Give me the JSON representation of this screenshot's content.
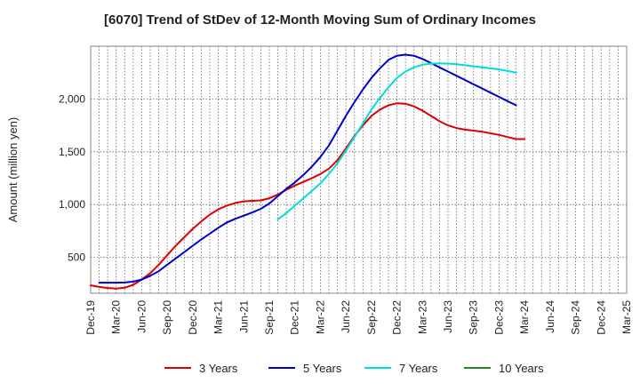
{
  "chart_data": {
    "type": "line",
    "title": "[6070]  Trend of StDev of 12-Month Moving Sum of Ordinary Incomes",
    "ylabel": "Amount (million yen)",
    "xlabel": "",
    "x_ticks": [
      "Dec-19",
      "Mar-20",
      "Jun-20",
      "Sep-20",
      "Dec-20",
      "Mar-21",
      "Jun-21",
      "Sep-21",
      "Dec-21",
      "Mar-22",
      "Jun-22",
      "Sep-22",
      "Dec-22",
      "Mar-23",
      "Jun-23",
      "Sep-23",
      "Dec-23",
      "Mar-24",
      "Jun-24",
      "Sep-24",
      "Dec-24",
      "Mar-25"
    ],
    "y_ticks": [
      500,
      1000,
      1500,
      2000
    ],
    "y_tick_labels": [
      "500",
      "1,000",
      "1,500",
      "2,000"
    ],
    "ylim": [
      160,
      2500
    ],
    "grid": true,
    "legend_position": "bottom",
    "series": [
      {
        "name": "3 Years",
        "color": "#dd0000",
        "start_index": 0,
        "values": [
          235,
          220,
          210,
          205,
          212,
          240,
          290,
          350,
          430,
          520,
          610,
          690,
          770,
          840,
          905,
          955,
          990,
          1015,
          1030,
          1035,
          1040,
          1060,
          1095,
          1140,
          1180,
          1215,
          1250,
          1290,
          1340,
          1420,
          1530,
          1650,
          1750,
          1840,
          1900,
          1940,
          1960,
          1955,
          1930,
          1890,
          1840,
          1790,
          1750,
          1725,
          1710,
          1700,
          1690,
          1675,
          1660,
          1640,
          1620,
          1620
        ]
      },
      {
        "name": "5 Years",
        "color": "#0000cc",
        "start_index": 1,
        "values": [
          260,
          260,
          260,
          262,
          270,
          290,
          325,
          370,
          430,
          490,
          550,
          610,
          670,
          725,
          780,
          830,
          865,
          895,
          925,
          960,
          1010,
          1080,
          1150,
          1210,
          1280,
          1360,
          1450,
          1560,
          1700,
          1840,
          1970,
          2090,
          2200,
          2290,
          2370,
          2410,
          2420,
          2410,
          2380,
          2340,
          2300,
          2260,
          2220,
          2180,
          2140,
          2100,
          2060,
          2020,
          1980,
          1940
        ]
      },
      {
        "name": "7 Years",
        "color": "#00dddd",
        "start_index": 22,
        "values": [
          860,
          920,
          990,
          1060,
          1130,
          1200,
          1290,
          1390,
          1510,
          1640,
          1770,
          1900,
          2010,
          2110,
          2200,
          2260,
          2300,
          2325,
          2335,
          2338,
          2335,
          2330,
          2320,
          2310,
          2300,
          2290,
          2280,
          2265,
          2250
        ]
      },
      {
        "name": "10 Years",
        "color": "#228b22",
        "start_index": 0,
        "values": []
      }
    ]
  }
}
